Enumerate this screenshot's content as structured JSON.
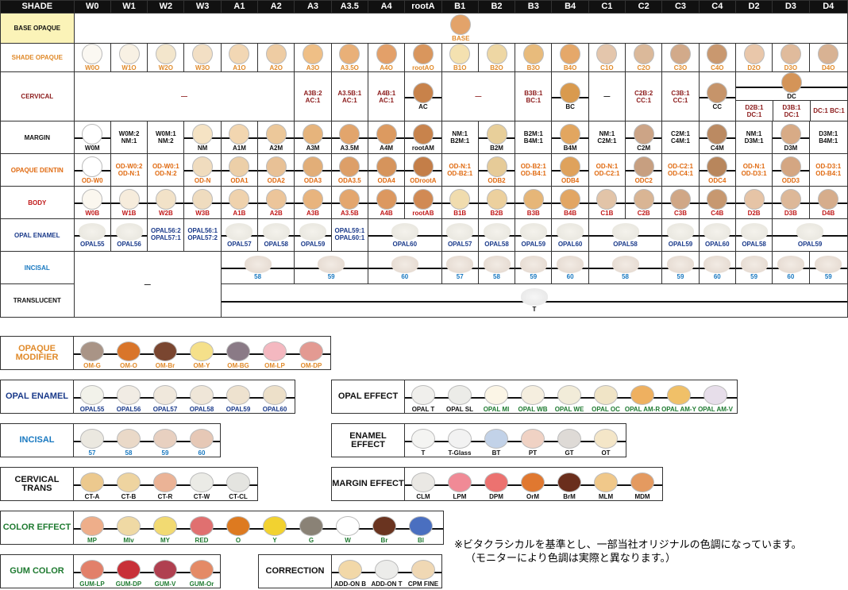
{
  "header": {
    "shade": "SHADE",
    "cols": [
      "W0",
      "W1",
      "W2",
      "W3",
      "A1",
      "A2",
      "A3",
      "A3.5",
      "A4",
      "rootA",
      "B1",
      "B2",
      "B3",
      "B4",
      "C1",
      "C2",
      "C3",
      "C4",
      "D2",
      "D3",
      "D4"
    ]
  },
  "rows": {
    "base": {
      "label": "BASE OPAQUE",
      "label_color": "#111111",
      "cap": "BASE",
      "color": "#e3a36a",
      "cap_color": "#e08a2a"
    },
    "shade_opaque": {
      "label": "SHADE OPAQUE",
      "label_color": "#e08a2a",
      "items": [
        [
          "W0O",
          "#fbf8f2"
        ],
        [
          "W1O",
          "#f8f1e4"
        ],
        [
          "W2O",
          "#f3e6cc"
        ],
        [
          "W3O",
          "#f2dfc4"
        ],
        [
          "A1O",
          "#f2d7b4"
        ],
        [
          "A2O",
          "#eecca3"
        ],
        [
          "A3O",
          "#efbf86"
        ],
        [
          "A3.5O",
          "#e9b078"
        ],
        [
          "A4O",
          "#e3a069"
        ],
        [
          "rootAO",
          "#d9965d"
        ],
        [
          "B1O",
          "#f4e1b0"
        ],
        [
          "B2O",
          "#eed7a4"
        ],
        [
          "B3O",
          "#e8bb7c"
        ],
        [
          "B4O",
          "#e5a86a"
        ],
        [
          "C1O",
          "#e4c6ac"
        ],
        [
          "C2O",
          "#dbb99a"
        ],
        [
          "C3O",
          "#d2aa8a"
        ],
        [
          "C4O",
          "#c9986f"
        ],
        [
          "D2O",
          "#e9c7aa"
        ],
        [
          "D3O",
          "#e0bb9c"
        ],
        [
          "D4O",
          "#d8b293"
        ]
      ]
    },
    "cervical": {
      "label": "CERVICAL",
      "label_color": "#8b1a1a",
      "dash": "—",
      "a3": "A3B:2 AC:1",
      "a35": "A3.5B:1 AC:1",
      "a4": "A4B:1 AC:1",
      "rootA": "AC",
      "b3": "B3B:1 BC:1",
      "b4": "BC",
      "c2": "C2B:2 CC:1",
      "c3": "C3B:1 CC:1",
      "c4": "CC",
      "dc": "DC",
      "d2": "D2B:1 DC:1",
      "d3": "D3B:1 DC:1",
      "d4": "DC:1 BC:1",
      "ac_color": "#c8824a",
      "bc_color": "#d99a4e",
      "cc_color": "#c6946a",
      "dc_color": "#d49458"
    },
    "margin": {
      "label": "MARGIN",
      "label_color": "#111111",
      "items": [
        [
          "W0M",
          "#ffffff"
        ],
        [
          "W0M:2 NM:1",
          ""
        ],
        [
          "W0M:1 NM:2",
          ""
        ],
        [
          "NM",
          "#f5e3c4"
        ],
        [
          "A1M",
          "#f2d6b0"
        ],
        [
          "A2M",
          "#ecc89a"
        ],
        [
          "A3M",
          "#e6b47c"
        ],
        [
          "A3.5M",
          "#e2a56c"
        ],
        [
          "A4M",
          "#dc9a60"
        ],
        [
          "rootAM",
          "#c8834c"
        ],
        [
          "NM:1 B2M:1",
          ""
        ],
        [
          "B2M",
          "#e8cf9a"
        ],
        [
          "B2M:1 B4M:1",
          ""
        ],
        [
          "B4M",
          "#e2a660"
        ],
        [
          "NM:1 C2M:1",
          ""
        ],
        [
          "C2M",
          "#cca486"
        ],
        [
          "C2M:1 C4M:1",
          ""
        ],
        [
          "C4M",
          "#bb8a62"
        ],
        [
          "NM:1 D3M:1",
          ""
        ],
        [
          "D3M",
          "#d8ab86"
        ],
        [
          "D3M:1 B4M:1",
          ""
        ]
      ]
    },
    "opaque_dentin": {
      "label": "OPAQUE DENTIN",
      "label_color": "#e06a10",
      "items": [
        [
          "OD-W0",
          "#ffffff"
        ],
        [
          "OD-W0:2 OD-N:1",
          ""
        ],
        [
          "OD-W0:1 OD-N:2",
          ""
        ],
        [
          "OD-N",
          "#f0dcbe"
        ],
        [
          "ODA1",
          "#eccfa8"
        ],
        [
          "ODA2",
          "#e8c196"
        ],
        [
          "ODA3",
          "#e2ae78"
        ],
        [
          "ODA3.5",
          "#dd9f68"
        ],
        [
          "ODA4",
          "#d6945c"
        ],
        [
          "ODrootA",
          "#c47e48"
        ],
        [
          "OD-N:1 OD-B2:1",
          ""
        ],
        [
          "ODB2",
          "#e6cb98"
        ],
        [
          "OD-B2:1 OD-B4:1",
          ""
        ],
        [
          "ODB4",
          "#dfa25c"
        ],
        [
          "OD-N:1 OD-C2:1",
          ""
        ],
        [
          "ODC2",
          "#c79f80"
        ],
        [
          "OD-C2:1 OD-C4:1",
          ""
        ],
        [
          "ODC4",
          "#b8865c"
        ],
        [
          "OD-N:1 OD-D3:1",
          ""
        ],
        [
          "ODD3",
          "#d4a682"
        ],
        [
          "OD-D3:1 OD-B4:1",
          ""
        ]
      ]
    },
    "body": {
      "label": "BODY",
      "label_color": "#c01818",
      "items": [
        [
          "W0B",
          "#fbf7ef"
        ],
        [
          "W1B",
          "#f6ecdc"
        ],
        [
          "W2B",
          "#f2e2c8"
        ],
        [
          "W3B",
          "#efdcbf"
        ],
        [
          "A1B",
          "#efd2ad"
        ],
        [
          "A2B",
          "#ecc59a"
        ],
        [
          "A3B",
          "#e8b47e"
        ],
        [
          "A3.5B",
          "#e3a66e"
        ],
        [
          "A4B",
          "#dc9860"
        ],
        [
          "rootAB",
          "#d18a54"
        ],
        [
          "B1B",
          "#f0dcae"
        ],
        [
          "B2B",
          "#ecd09e"
        ],
        [
          "B3B",
          "#e6b678"
        ],
        [
          "B4B",
          "#e2a664"
        ],
        [
          "C1B",
          "#e2c4a8"
        ],
        [
          "C2B",
          "#d9b594"
        ],
        [
          "C3B",
          "#d0a786"
        ],
        [
          "C4B",
          "#c79870"
        ],
        [
          "D2B",
          "#e6c4a6"
        ],
        [
          "D3B",
          "#ddb898"
        ],
        [
          "D4B",
          "#d6ad8c"
        ]
      ]
    },
    "opal_enamel": {
      "label": "OPAL ENAMEL",
      "label_color": "#1a3a8a",
      "items": [
        "OPAL55",
        "OPAL56",
        "OPAL56:2 OPAL57:1",
        "OPAL56:1 OPAL57:2",
        "OPAL57",
        "OPAL58",
        "OPAL59",
        "OPAL59:1 OPAL60:1",
        "OPAL60",
        "OPAL57",
        "OPAL58",
        "OPAL59",
        "OPAL60",
        "OPAL58",
        "OPAL59",
        "OPAL60",
        "OPAL58",
        "OPAL59"
      ]
    },
    "incisal": {
      "label": "INCISAL",
      "label_color": "#1878c0",
      "dash": "—",
      "items": [
        "58",
        "59",
        "60",
        "57",
        "58",
        "59",
        "60",
        "58",
        "59",
        "60",
        "59",
        "60",
        "59"
      ]
    },
    "translucent": {
      "label": "TRANSLUCENT",
      "label_color": "#111111",
      "cap": "T"
    }
  },
  "panels": {
    "opaque_modifier": {
      "label": "OPAQUE MODIFIER",
      "label_color": "#e08a2a",
      "cap_color": "#e08a2a",
      "items": [
        [
          "OM-G",
          "#a99486"
        ],
        [
          "OM-O",
          "#d9752a"
        ],
        [
          "OM-Br",
          "#7a4630"
        ],
        [
          "OM-Y",
          "#f5e08a"
        ],
        [
          "OM-BG",
          "#8a7a86"
        ],
        [
          "OM-LP",
          "#f4b8c0"
        ],
        [
          "OM-DP",
          "#e39a92"
        ]
      ]
    },
    "opal_enamel2": {
      "label": "OPAL ENAMEL",
      "label_color": "#1a3a8a",
      "cap_color": "#1a3a8a",
      "items": [
        [
          "OPAL55",
          "#f2f2ea"
        ],
        [
          "OPAL56",
          "#f1ece4"
        ],
        [
          "OPAL57",
          "#f0e8dc"
        ],
        [
          "OPAL58",
          "#efe6d8"
        ],
        [
          "OPAL59",
          "#eee2cf"
        ],
        [
          "OPAL60",
          "#ede0c9"
        ]
      ]
    },
    "incisal2": {
      "label": "INCISAL",
      "label_color": "#1878c0",
      "cap_color": "#1878c0",
      "items": [
        [
          "57",
          "#ebe8e0"
        ],
        [
          "58",
          "#ead9c8"
        ],
        [
          "59",
          "#e8d0c0"
        ],
        [
          "60",
          "#e6c8b6"
        ]
      ]
    },
    "cervical_trans": {
      "label": "CERVICAL TRANS",
      "label_color": "#111111",
      "cap_color": "#111111",
      "items": [
        [
          "CT-A",
          "#ecc98e"
        ],
        [
          "CT-B",
          "#eed4a0"
        ],
        [
          "CT-R",
          "#ebb396"
        ],
        [
          "CT-W",
          "#ebebe6"
        ],
        [
          "CT-CL",
          "#e4e4e0"
        ]
      ]
    },
    "color_effect": {
      "label": "COLOR EFFECT",
      "label_color": "#1e7a30",
      "cap_color": "#1e7a30",
      "items": [
        [
          "MP",
          "#eeae8a"
        ],
        [
          "MIv",
          "#efd9a4"
        ],
        [
          "MY",
          "#f2da72"
        ],
        [
          "RED",
          "#e07070"
        ],
        [
          "O",
          "#dd7a20"
        ],
        [
          "Y",
          "#f2d230"
        ],
        [
          "G",
          "#8a8276"
        ],
        [
          "W",
          "#ffffff"
        ],
        [
          "Br",
          "#6a3420"
        ],
        [
          "Bl",
          "#4a6fc0"
        ]
      ]
    },
    "gum_color": {
      "label": "GUM COLOR",
      "label_color": "#1e7a30",
      "cap_color": "#1e7a30",
      "items": [
        [
          "GUM-LP",
          "#e2806a"
        ],
        [
          "GUM-DP",
          "#c83038"
        ],
        [
          "GUM-V",
          "#b04050"
        ],
        [
          "GUM-Or",
          "#e48a66"
        ]
      ]
    },
    "opal_effect": {
      "label": "OPAL EFFECT",
      "label_color": "#111111",
      "items": [
        [
          "OPAL T",
          "#f0efec",
          "#111111"
        ],
        [
          "OPAL SL",
          "#ecece8",
          "#111111"
        ],
        [
          "OPAL MI",
          "#fbf5e6",
          "#1e7a30"
        ],
        [
          "OPAL WB",
          "#f5eedf",
          "#1e7a30"
        ],
        [
          "OPAL WE",
          "#f2ecd9",
          "#1e7a30"
        ],
        [
          "OPAL OC",
          "#f0e4c6",
          "#1e7a30"
        ],
        [
          "OPAL AM-R",
          "#eeb060",
          "#1e7a30"
        ],
        [
          "OPAL AM-Y",
          "#f0c068",
          "#1e7a30"
        ],
        [
          "OPAL AM-V",
          "#e7deea",
          "#1e7a30"
        ]
      ]
    },
    "enamel_effect": {
      "label": "ENAMEL EFFECT",
      "label_color": "#111111",
      "cap_color": "#111111",
      "items": [
        [
          "T",
          "#f4f4f2"
        ],
        [
          "T-Glass",
          "#f2f2f2"
        ],
        [
          "BT",
          "#c2d2e8"
        ],
        [
          "PT",
          "#f0d2c4"
        ],
        [
          "GT",
          "#dedad6"
        ],
        [
          "OT",
          "#f4e6c8"
        ]
      ]
    },
    "margin_effect": {
      "label": "MARGIN EFFECT",
      "label_color": "#111111",
      "cap_color": "#111111",
      "items": [
        [
          "CLM",
          "#eae8e4"
        ],
        [
          "LPM",
          "#f08a96"
        ],
        [
          "DPM",
          "#ec7270"
        ],
        [
          "OrM",
          "#e07830"
        ],
        [
          "BrM",
          "#6a2e1c"
        ],
        [
          "MLM",
          "#f0c88a"
        ],
        [
          "MDM",
          "#e49a60"
        ]
      ]
    },
    "correction": {
      "label": "CORRECTION",
      "label_color": "#111111",
      "cap_color": "#111111",
      "items": [
        [
          "ADD-ON B",
          "#f2d8a8"
        ],
        [
          "ADD-ON T",
          "#ececea"
        ],
        [
          "CPM FINE",
          "#f0d8b4"
        ]
      ]
    }
  },
  "note": {
    "line1": "※ビタクラシカルを基準とし、一部当社オリジナルの色調になっています。",
    "line2": "（モニターにより色調は実際と異なります。）"
  }
}
